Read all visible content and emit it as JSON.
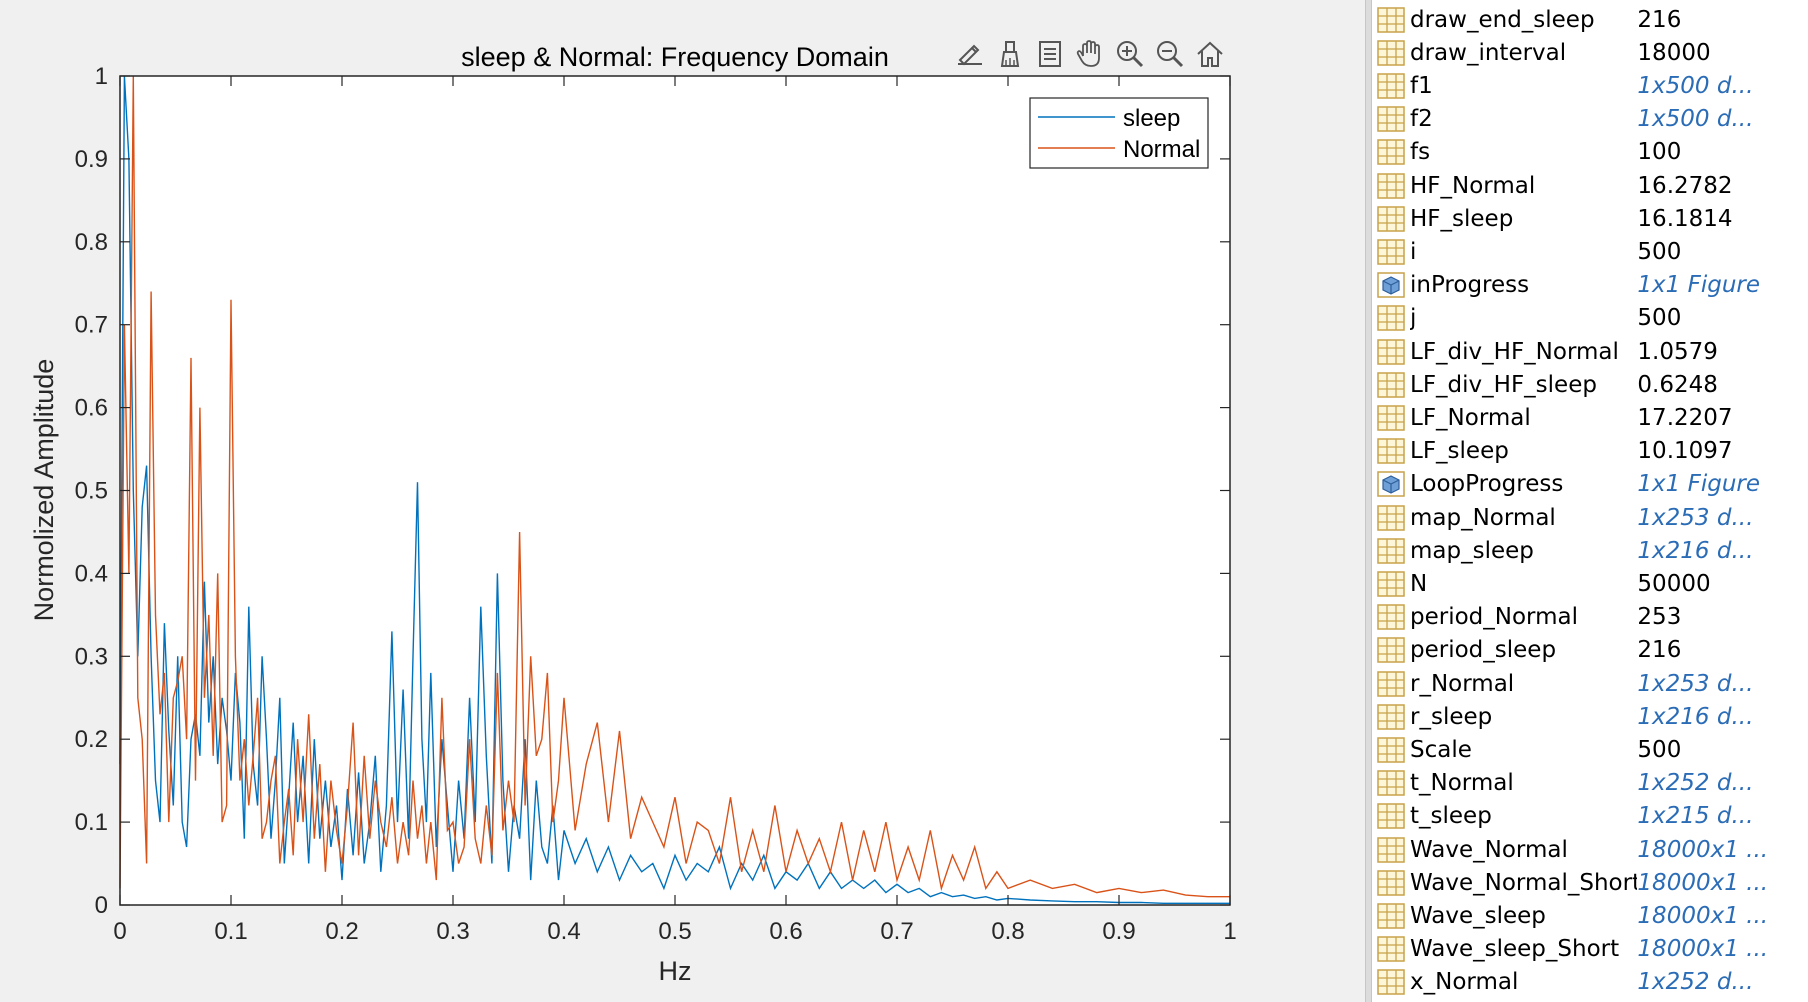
{
  "chart_data": {
    "type": "line",
    "title": "sleep & Normal: Frequency Domain",
    "xlabel": "Hz",
    "ylabel": "Normolized Amplitude",
    "xlim": [
      0,
      1
    ],
    "ylim": [
      0,
      1
    ],
    "xticks": [
      "0",
      "0.1",
      "0.2",
      "0.3",
      "0.4",
      "0.5",
      "0.6",
      "0.7",
      "0.8",
      "0.9",
      "1"
    ],
    "yticks": [
      "0",
      "0.1",
      "0.2",
      "0.3",
      "0.4",
      "0.5",
      "0.6",
      "0.7",
      "0.8",
      "0.9",
      "1"
    ],
    "legend_position": "top-right",
    "grid": false,
    "series": [
      {
        "name": "sleep",
        "color": "#0072bd",
        "x": [
          0.0,
          0.004,
          0.008,
          0.012,
          0.016,
          0.02,
          0.024,
          0.028,
          0.032,
          0.036,
          0.04,
          0.044,
          0.048,
          0.052,
          0.056,
          0.06,
          0.064,
          0.068,
          0.072,
          0.076,
          0.08,
          0.084,
          0.088,
          0.092,
          0.096,
          0.1,
          0.104,
          0.108,
          0.112,
          0.116,
          0.12,
          0.124,
          0.128,
          0.132,
          0.136,
          0.14,
          0.144,
          0.148,
          0.152,
          0.156,
          0.16,
          0.165,
          0.17,
          0.175,
          0.18,
          0.185,
          0.19,
          0.195,
          0.2,
          0.205,
          0.21,
          0.215,
          0.22,
          0.225,
          0.23,
          0.235,
          0.24,
          0.245,
          0.25,
          0.255,
          0.26,
          0.264,
          0.268,
          0.272,
          0.276,
          0.28,
          0.285,
          0.29,
          0.295,
          0.3,
          0.305,
          0.31,
          0.315,
          0.32,
          0.325,
          0.33,
          0.335,
          0.34,
          0.345,
          0.35,
          0.355,
          0.36,
          0.365,
          0.37,
          0.375,
          0.38,
          0.385,
          0.39,
          0.395,
          0.4,
          0.41,
          0.42,
          0.43,
          0.44,
          0.45,
          0.46,
          0.47,
          0.48,
          0.49,
          0.5,
          0.51,
          0.52,
          0.53,
          0.54,
          0.55,
          0.56,
          0.57,
          0.58,
          0.59,
          0.6,
          0.61,
          0.62,
          0.63,
          0.64,
          0.65,
          0.66,
          0.67,
          0.68,
          0.69,
          0.7,
          0.71,
          0.72,
          0.73,
          0.74,
          0.75,
          0.76,
          0.77,
          0.78,
          0.79,
          0.8,
          0.82,
          0.84,
          0.86,
          0.88,
          0.9,
          0.92,
          0.94,
          0.96,
          0.98,
          1.0
        ],
        "values": [
          0.17,
          1.0,
          0.9,
          0.5,
          0.3,
          0.48,
          0.53,
          0.3,
          0.15,
          0.1,
          0.34,
          0.21,
          0.12,
          0.3,
          0.1,
          0.07,
          0.2,
          0.23,
          0.18,
          0.39,
          0.22,
          0.3,
          0.17,
          0.25,
          0.21,
          0.15,
          0.28,
          0.22,
          0.08,
          0.36,
          0.17,
          0.12,
          0.3,
          0.2,
          0.08,
          0.15,
          0.25,
          0.05,
          0.13,
          0.22,
          0.1,
          0.18,
          0.05,
          0.2,
          0.08,
          0.15,
          0.07,
          0.12,
          0.03,
          0.14,
          0.06,
          0.16,
          0.05,
          0.1,
          0.18,
          0.04,
          0.12,
          0.33,
          0.1,
          0.26,
          0.08,
          0.3,
          0.51,
          0.2,
          0.1,
          0.28,
          0.07,
          0.2,
          0.12,
          0.04,
          0.15,
          0.08,
          0.25,
          0.1,
          0.36,
          0.18,
          0.05,
          0.4,
          0.15,
          0.04,
          0.12,
          0.08,
          0.2,
          0.03,
          0.15,
          0.07,
          0.05,
          0.12,
          0.03,
          0.09,
          0.05,
          0.08,
          0.04,
          0.07,
          0.03,
          0.06,
          0.04,
          0.05,
          0.02,
          0.06,
          0.03,
          0.05,
          0.04,
          0.07,
          0.02,
          0.05,
          0.03,
          0.06,
          0.02,
          0.04,
          0.03,
          0.05,
          0.02,
          0.04,
          0.02,
          0.03,
          0.02,
          0.03,
          0.015,
          0.025,
          0.015,
          0.02,
          0.01,
          0.015,
          0.01,
          0.012,
          0.008,
          0.01,
          0.006,
          0.008,
          0.006,
          0.005,
          0.004,
          0.004,
          0.003,
          0.003,
          0.002,
          0.002,
          0.002,
          0.002
        ]
      },
      {
        "name": "Normal",
        "color": "#d95319",
        "x": [
          0.0,
          0.004,
          0.008,
          0.012,
          0.016,
          0.02,
          0.024,
          0.028,
          0.032,
          0.036,
          0.04,
          0.044,
          0.048,
          0.052,
          0.056,
          0.06,
          0.064,
          0.068,
          0.072,
          0.076,
          0.08,
          0.084,
          0.088,
          0.092,
          0.096,
          0.1,
          0.104,
          0.108,
          0.112,
          0.116,
          0.12,
          0.124,
          0.128,
          0.132,
          0.136,
          0.14,
          0.144,
          0.148,
          0.152,
          0.156,
          0.16,
          0.165,
          0.17,
          0.175,
          0.18,
          0.185,
          0.19,
          0.195,
          0.2,
          0.205,
          0.21,
          0.215,
          0.22,
          0.225,
          0.23,
          0.235,
          0.24,
          0.245,
          0.25,
          0.255,
          0.26,
          0.264,
          0.268,
          0.272,
          0.276,
          0.28,
          0.285,
          0.29,
          0.295,
          0.3,
          0.305,
          0.31,
          0.315,
          0.32,
          0.325,
          0.33,
          0.335,
          0.34,
          0.345,
          0.35,
          0.355,
          0.36,
          0.365,
          0.37,
          0.375,
          0.38,
          0.385,
          0.39,
          0.395,
          0.4,
          0.41,
          0.42,
          0.43,
          0.44,
          0.45,
          0.46,
          0.47,
          0.48,
          0.49,
          0.5,
          0.51,
          0.52,
          0.53,
          0.54,
          0.55,
          0.56,
          0.57,
          0.58,
          0.59,
          0.6,
          0.61,
          0.62,
          0.63,
          0.64,
          0.65,
          0.66,
          0.67,
          0.68,
          0.69,
          0.7,
          0.71,
          0.72,
          0.73,
          0.74,
          0.75,
          0.76,
          0.77,
          0.78,
          0.79,
          0.8,
          0.82,
          0.84,
          0.86,
          0.88,
          0.9,
          0.92,
          0.94,
          0.96,
          0.98,
          1.0
        ],
        "values": [
          0.02,
          0.7,
          0.4,
          1.0,
          0.25,
          0.2,
          0.05,
          0.74,
          0.35,
          0.23,
          0.28,
          0.1,
          0.25,
          0.27,
          0.3,
          0.2,
          0.66,
          0.15,
          0.6,
          0.25,
          0.35,
          0.18,
          0.4,
          0.1,
          0.12,
          0.73,
          0.3,
          0.15,
          0.2,
          0.12,
          0.18,
          0.25,
          0.08,
          0.1,
          0.15,
          0.18,
          0.05,
          0.1,
          0.14,
          0.06,
          0.2,
          0.1,
          0.23,
          0.08,
          0.17,
          0.04,
          0.15,
          0.09,
          0.05,
          0.12,
          0.22,
          0.06,
          0.18,
          0.08,
          0.15,
          0.1,
          0.07,
          0.13,
          0.05,
          0.1,
          0.06,
          0.15,
          0.08,
          0.12,
          0.05,
          0.1,
          0.03,
          0.25,
          0.09,
          0.1,
          0.05,
          0.07,
          0.2,
          0.08,
          0.05,
          0.12,
          0.06,
          0.28,
          0.09,
          0.15,
          0.1,
          0.45,
          0.12,
          0.3,
          0.18,
          0.2,
          0.28,
          0.1,
          0.15,
          0.25,
          0.09,
          0.17,
          0.22,
          0.1,
          0.21,
          0.08,
          0.13,
          0.1,
          0.07,
          0.13,
          0.05,
          0.1,
          0.09,
          0.05,
          0.13,
          0.04,
          0.09,
          0.04,
          0.12,
          0.04,
          0.09,
          0.05,
          0.08,
          0.04,
          0.1,
          0.03,
          0.09,
          0.04,
          0.1,
          0.03,
          0.07,
          0.03,
          0.09,
          0.02,
          0.06,
          0.03,
          0.07,
          0.02,
          0.04,
          0.02,
          0.03,
          0.02,
          0.025,
          0.015,
          0.02,
          0.015,
          0.018,
          0.012,
          0.01,
          0.01
        ]
      }
    ]
  },
  "toolbar": {
    "items": [
      {
        "name": "edit-plot-icon"
      },
      {
        "name": "brush-icon"
      },
      {
        "name": "data-cursor-icon"
      },
      {
        "name": "pan-hand-icon"
      },
      {
        "name": "zoom-in-icon"
      },
      {
        "name": "zoom-out-icon"
      },
      {
        "name": "home-icon"
      }
    ]
  },
  "workspace": {
    "variables": [
      {
        "name": "draw_end_sleep",
        "value": "216",
        "type": "matrix"
      },
      {
        "name": "draw_interval",
        "value": "18000",
        "type": "matrix"
      },
      {
        "name": "f1",
        "value": "1x500 d...",
        "type": "matrix",
        "link": true
      },
      {
        "name": "f2",
        "value": "1x500 d...",
        "type": "matrix",
        "link": true
      },
      {
        "name": "fs",
        "value": "100",
        "type": "matrix"
      },
      {
        "name": "HF_Normal",
        "value": "16.2782",
        "type": "matrix"
      },
      {
        "name": "HF_sleep",
        "value": "16.1814",
        "type": "matrix"
      },
      {
        "name": "i",
        "value": "500",
        "type": "matrix"
      },
      {
        "name": "inProgress",
        "value": "1x1 Figure",
        "type": "object",
        "link": true
      },
      {
        "name": "j",
        "value": "500",
        "type": "matrix"
      },
      {
        "name": "LF_div_HF_Normal",
        "value": "1.0579",
        "type": "matrix"
      },
      {
        "name": "LF_div_HF_sleep",
        "value": "0.6248",
        "type": "matrix"
      },
      {
        "name": "LF_Normal",
        "value": "17.2207",
        "type": "matrix"
      },
      {
        "name": "LF_sleep",
        "value": "10.1097",
        "type": "matrix"
      },
      {
        "name": "LoopProgress",
        "value": "1x1 Figure",
        "type": "object",
        "link": true
      },
      {
        "name": "map_Normal",
        "value": "1x253 d...",
        "type": "matrix",
        "link": true
      },
      {
        "name": "map_sleep",
        "value": "1x216 d...",
        "type": "matrix",
        "link": true
      },
      {
        "name": "N",
        "value": "50000",
        "type": "matrix"
      },
      {
        "name": "period_Normal",
        "value": "253",
        "type": "matrix"
      },
      {
        "name": "period_sleep",
        "value": "216",
        "type": "matrix"
      },
      {
        "name": "r_Normal",
        "value": "1x253 d...",
        "type": "matrix",
        "link": true
      },
      {
        "name": "r_sleep",
        "value": "1x216 d...",
        "type": "matrix",
        "link": true
      },
      {
        "name": "Scale",
        "value": "500",
        "type": "matrix"
      },
      {
        "name": "t_Normal",
        "value": "1x252 d...",
        "type": "matrix",
        "link": true
      },
      {
        "name": "t_sleep",
        "value": "1x215 d...",
        "type": "matrix",
        "link": true
      },
      {
        "name": "Wave_Normal",
        "value": "18000x1 ...",
        "type": "matrix",
        "link": true
      },
      {
        "name": "Wave_Normal_Short",
        "value": "18000x1 ...",
        "type": "matrix",
        "link": true
      },
      {
        "name": "Wave_sleep",
        "value": "18000x1 ...",
        "type": "matrix",
        "link": true
      },
      {
        "name": "Wave_sleep_Short",
        "value": "18000x1 ...",
        "type": "matrix",
        "link": true
      },
      {
        "name": "x_Normal",
        "value": "1x252 d...",
        "type": "matrix",
        "link": true
      }
    ]
  }
}
